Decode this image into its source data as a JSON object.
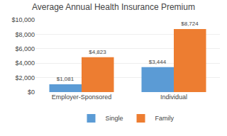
{
  "chart_data": {
    "type": "bar",
    "title": "Average Annual Health Insurance Premium",
    "categories": [
      "Employer-Sponsored",
      "Individual"
    ],
    "series": [
      {
        "name": "Single",
        "color": "#5B9BD5",
        "values": [
          1081,
          3444
        ],
        "value_labels": [
          "$1,081",
          "$3,444"
        ]
      },
      {
        "name": "Family",
        "color": "#ED7D31",
        "values": [
          4823,
          8724
        ],
        "value_labels": [
          "$4,823",
          "$8,724"
        ]
      }
    ],
    "ylim": [
      0,
      10000
    ],
    "yticks": [
      {
        "value": 0,
        "label": "$0"
      },
      {
        "value": 2000,
        "label": "$2,000"
      },
      {
        "value": 4000,
        "label": "$4,000"
      },
      {
        "value": 6000,
        "label": "$6,000"
      },
      {
        "value": 8000,
        "label": "$8,000"
      },
      {
        "value": 10000,
        "label": "$10,000"
      }
    ],
    "grid": true,
    "legend": "bottom",
    "data_labels": true
  }
}
